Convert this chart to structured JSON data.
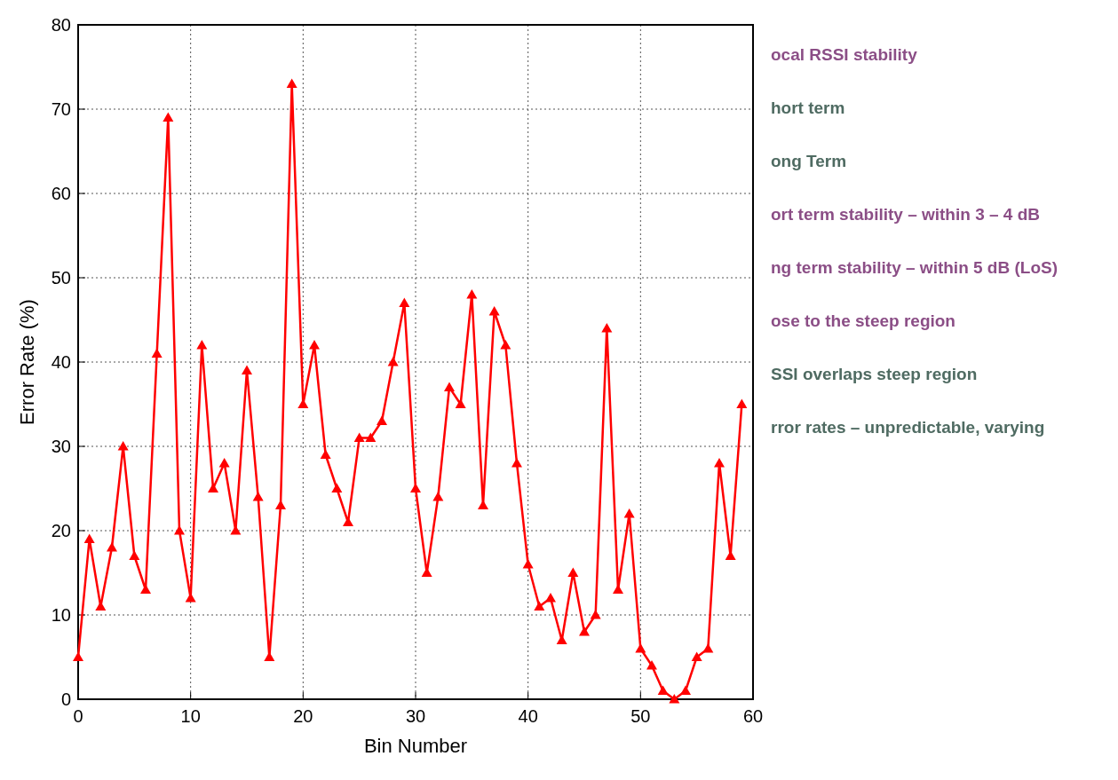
{
  "chart_data": {
    "type": "line",
    "xlabel": "Bin Number",
    "ylabel": "Error Rate (%)",
    "x": [
      0,
      1,
      2,
      3,
      4,
      5,
      6,
      7,
      8,
      9,
      10,
      11,
      12,
      13,
      14,
      15,
      16,
      17,
      18,
      19,
      20,
      21,
      22,
      23,
      24,
      25,
      26,
      27,
      28,
      29,
      30,
      31,
      32,
      33,
      34,
      35,
      36,
      37,
      38,
      39,
      40,
      41,
      42,
      43,
      44,
      45,
      46,
      47,
      48,
      49,
      50,
      51,
      52,
      53,
      54,
      55,
      56,
      57,
      58,
      59
    ],
    "series": [
      {
        "color": "#ff0000",
        "values": [
          5,
          19,
          11,
          18,
          30,
          17,
          13,
          41,
          69,
          20,
          12,
          42,
          25,
          28,
          20,
          39,
          24,
          5,
          23,
          73,
          35,
          42,
          29,
          25,
          21,
          31,
          31,
          33,
          40,
          47,
          25,
          15,
          24,
          37,
          35,
          48,
          23,
          46,
          42,
          28,
          16,
          11,
          12,
          7,
          15,
          8,
          10,
          44,
          13,
          22,
          6,
          4,
          1,
          0,
          1,
          5,
          6,
          28,
          17,
          35
        ]
      }
    ],
    "xlim": [
      0,
      60
    ],
    "xticks": [
      0,
      10,
      20,
      30,
      40,
      50,
      60
    ],
    "ylim": [
      0,
      80
    ],
    "yticks": [
      0,
      10,
      20,
      30,
      40,
      50,
      60,
      70,
      80
    ],
    "grid": true,
    "marker": "triangle",
    "line_style": "solid",
    "annotations": [
      "ocal RSSI stability",
      "hort term",
      "ong Term",
      "ort term stability – within 3 – 4 dB",
      "ng term stability – within 5 dB (LoS)",
      "ose to the steep region",
      "SSI overlaps steep region",
      "rror rates – unpredictable, varying"
    ]
  }
}
